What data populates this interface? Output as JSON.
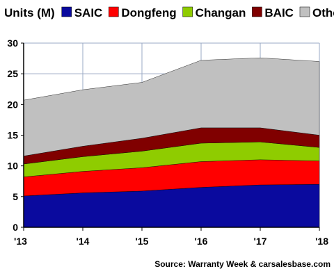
{
  "chart_data": {
    "type": "area",
    "stacked": true,
    "title": "Units (M)",
    "source": "Source: Warranty Week & carsalesbase.com",
    "x": [
      "'13",
      "'14",
      "'15",
      "'16",
      "'17",
      "'18"
    ],
    "ylim": [
      0,
      30
    ],
    "yticks": [
      0,
      5,
      10,
      15,
      20,
      25,
      30
    ],
    "grid": true,
    "legend_position": "top",
    "series": [
      {
        "name": "SAIC",
        "color": "#0a0a9e",
        "values": [
          5.1,
          5.6,
          5.9,
          6.5,
          6.9,
          7.0
        ]
      },
      {
        "name": "Dongfeng",
        "color": "#ff0000",
        "values": [
          3.1,
          3.5,
          3.8,
          4.2,
          4.1,
          3.8
        ]
      },
      {
        "name": "Changan",
        "color": "#8fcc00",
        "values": [
          2.1,
          2.4,
          2.7,
          3.0,
          2.9,
          2.2
        ]
      },
      {
        "name": "BAIC",
        "color": "#800000",
        "values": [
          1.3,
          1.7,
          2.1,
          2.5,
          2.3,
          2.0
        ]
      },
      {
        "name": "Other",
        "color": "#c0c0c0",
        "values": [
          9.1,
          9.2,
          9.1,
          11.0,
          11.4,
          12.0
        ]
      }
    ]
  }
}
